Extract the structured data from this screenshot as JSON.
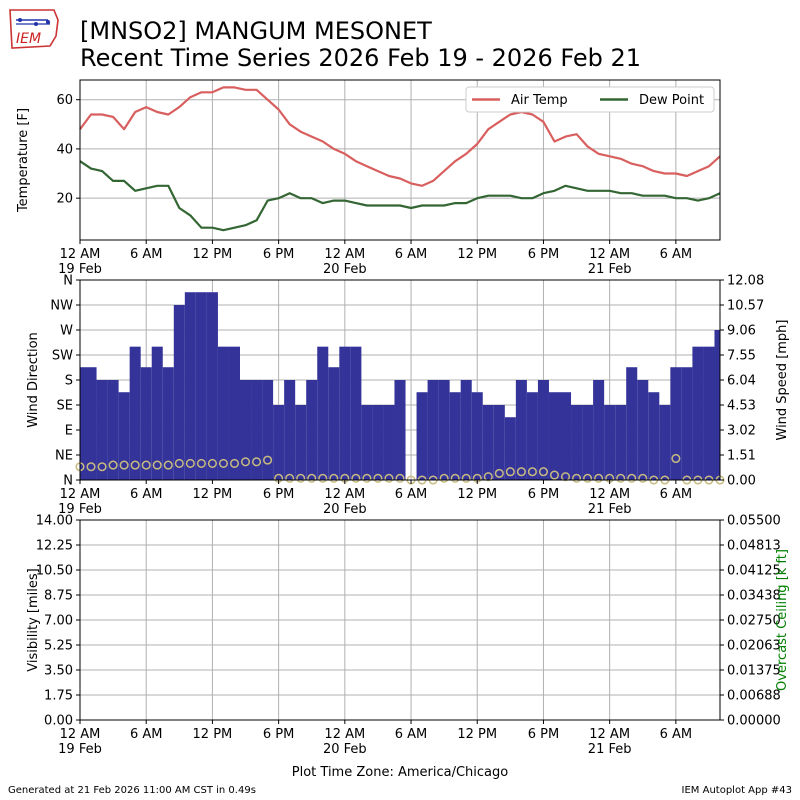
{
  "header": {
    "title_line1": "[MNSO2] MANGUM MESONET",
    "title_line2": "Recent Time Series 2026 Feb 19 - 2026 Feb 21",
    "logo_text": "IEM"
  },
  "footer": {
    "left": "Generated at 21 Feb 2026 11:00 AM CST in 0.49s",
    "right": "IEM Autoplot App #43"
  },
  "x_axis": {
    "tick_hours": [
      0,
      6,
      12,
      18,
      24,
      30,
      36,
      42,
      48,
      54
    ],
    "tick_labels": [
      "12 AM",
      "6 AM",
      "12 PM",
      "6 PM",
      "12 AM",
      "6 AM",
      "12 PM",
      "6 PM",
      "12 AM",
      "6 AM"
    ],
    "date_labels": [
      "19 Feb",
      "",
      "",
      "",
      "20 Feb",
      "",
      "",
      "",
      "21 Feb",
      ""
    ],
    "range_hours": [
      0,
      58
    ],
    "xlabel": "Plot Time Zone: America/Chicago"
  },
  "colors": {
    "air_temp": "#d95f5f",
    "dew_point": "#336633",
    "wind_dir_fill": "#333399",
    "wind_speed_marker": "#c8bb80",
    "ceiling_axis": "#008000",
    "grid": "#b0b0b0"
  },
  "chart_data": [
    {
      "type": "line",
      "ylabel": "Temperature [F]",
      "ylim": [
        3,
        68
      ],
      "yticks": [
        20,
        40,
        60
      ],
      "grid": true,
      "legend_position": "top-right",
      "series": [
        {
          "name": "Air Temp",
          "x": [
            0,
            1,
            2,
            3,
            4,
            5,
            6,
            7,
            8,
            9,
            10,
            11,
            12,
            13,
            14,
            15,
            16,
            17,
            18,
            19,
            20,
            21,
            22,
            23,
            24,
            25,
            26,
            27,
            28,
            29,
            30,
            31,
            32,
            33,
            34,
            35,
            36,
            37,
            38,
            39,
            40,
            41,
            42,
            43,
            44,
            45,
            46,
            47,
            48,
            49,
            50,
            51,
            52,
            53,
            54,
            55,
            56,
            57,
            58
          ],
          "y": [
            48,
            54,
            54,
            53,
            48,
            55,
            57,
            55,
            54,
            57,
            61,
            63,
            63,
            65,
            65,
            64,
            64,
            60,
            56,
            50,
            47,
            45,
            43,
            40,
            38,
            35,
            33,
            31,
            29,
            28,
            26,
            25,
            27,
            31,
            35,
            38,
            42,
            48,
            51,
            54,
            55,
            54,
            51,
            43,
            45,
            46,
            41,
            38,
            37,
            36,
            34,
            33,
            31,
            30,
            30,
            29,
            31,
            33,
            37
          ]
        },
        {
          "name": "Dew Point",
          "x": [
            0,
            1,
            2,
            3,
            4,
            5,
            6,
            7,
            8,
            9,
            10,
            11,
            12,
            13,
            14,
            15,
            16,
            17,
            18,
            19,
            20,
            21,
            22,
            23,
            24,
            25,
            26,
            27,
            28,
            29,
            30,
            31,
            32,
            33,
            34,
            35,
            36,
            37,
            38,
            39,
            40,
            41,
            42,
            43,
            44,
            45,
            46,
            47,
            48,
            49,
            50,
            51,
            52,
            53,
            54,
            55,
            56,
            57,
            58
          ],
          "y": [
            35,
            32,
            31,
            27,
            27,
            23,
            24,
            25,
            25,
            16,
            13,
            8,
            8,
            7,
            8,
            9,
            11,
            19,
            20,
            22,
            20,
            20,
            18,
            19,
            19,
            18,
            17,
            17,
            17,
            17,
            16,
            17,
            17,
            17,
            18,
            18,
            20,
            21,
            21,
            21,
            20,
            20,
            22,
            23,
            25,
            24,
            23,
            23,
            23,
            22,
            22,
            21,
            21,
            21,
            20,
            20,
            19,
            20,
            22
          ]
        }
      ]
    },
    {
      "type": "bar",
      "ylabel": "Wind Direction",
      "y2label": "Wind Speed [mph]",
      "ylim": [
        0,
        360
      ],
      "yticks": [
        0,
        45,
        90,
        135,
        180,
        225,
        270,
        315,
        360
      ],
      "ytick_labels": [
        "N",
        "NE",
        "E",
        "SE",
        "S",
        "SW",
        "W",
        "NW",
        "N"
      ],
      "y2lim": [
        0,
        12.08
      ],
      "y2ticks": [
        0.0,
        1.51,
        3.02,
        4.53,
        6.04,
        7.55,
        9.06,
        10.57,
        12.08
      ],
      "y2tick_labels": [
        "0.00",
        "1.51",
        "3.02",
        "4.53",
        "6.04",
        "7.55",
        "9.06",
        "10.57",
        "12.08"
      ],
      "grid": true,
      "series": [
        {
          "name": "",
          "kind": "bar",
          "bar_width_hours": 1,
          "x": [
            0,
            1,
            2,
            3,
            4,
            5,
            6,
            7,
            8,
            9,
            10,
            11,
            12,
            13,
            14,
            15,
            16,
            17,
            18,
            19,
            20,
            21,
            22,
            23,
            24,
            25,
            26,
            27,
            28,
            29,
            30,
            31,
            32,
            33,
            34,
            35,
            36,
            37,
            38,
            39,
            40,
            41,
            42,
            43,
            44,
            45,
            46,
            47,
            48,
            49,
            50,
            51,
            52,
            53,
            54,
            55,
            56,
            57,
            58
          ],
          "y": [
            203,
            203,
            180,
            180,
            158,
            240,
            203,
            240,
            203,
            315,
            338,
            338,
            338,
            240,
            240,
            180,
            180,
            180,
            135,
            180,
            135,
            180,
            240,
            203,
            240,
            240,
            135,
            135,
            135,
            180,
            0,
            158,
            180,
            180,
            158,
            180,
            158,
            135,
            135,
            113,
            180,
            158,
            180,
            158,
            158,
            135,
            135,
            180,
            135,
            135,
            203,
            180,
            158,
            135,
            203,
            203,
            240,
            240,
            270
          ]
        },
        {
          "name": "",
          "kind": "scatter",
          "x": [
            0,
            1,
            2,
            3,
            4,
            5,
            6,
            7,
            8,
            9,
            10,
            11,
            12,
            13,
            14,
            15,
            16,
            17,
            18,
            19,
            20,
            21,
            22,
            23,
            24,
            25,
            26,
            27,
            28,
            29,
            30,
            31,
            32,
            33,
            34,
            35,
            36,
            37,
            38,
            39,
            40,
            41,
            42,
            43,
            44,
            45,
            46,
            47,
            48,
            49,
            50,
            51,
            52,
            53,
            54,
            55,
            56,
            57,
            58
          ],
          "y": [
            0.8,
            0.8,
            0.8,
            0.9,
            0.9,
            0.9,
            0.9,
            0.9,
            0.9,
            1.0,
            1.0,
            1.0,
            1.0,
            1.0,
            1.0,
            1.1,
            1.1,
            1.2,
            0.1,
            0.1,
            0.1,
            0.1,
            0.1,
            0.1,
            0.1,
            0.1,
            0.1,
            0.1,
            0.1,
            0.1,
            0.0,
            0.0,
            0.0,
            0.1,
            0.1,
            0.1,
            0.1,
            0.2,
            0.4,
            0.5,
            0.5,
            0.5,
            0.5,
            0.3,
            0.2,
            0.1,
            0.1,
            0.1,
            0.1,
            0.1,
            0.1,
            0.1,
            0.0,
            0.0,
            1.3,
            0.0,
            0.0,
            0.0,
            0.0
          ]
        }
      ]
    },
    {
      "type": "line",
      "ylabel": "Visibility [miles]",
      "y2label": "Overcast Ceiling [k ft]",
      "ylim": [
        0,
        14
      ],
      "yticks": [
        0,
        1.75,
        3.5,
        5.25,
        7,
        8.75,
        10.5,
        12.25,
        14
      ],
      "ytick_labels": [
        "0.00",
        "1.75",
        "3.50",
        "5.25",
        "7.00",
        "8.75",
        "10.50",
        "12.25",
        "14.00"
      ],
      "y2lim": [
        0,
        0.055
      ],
      "y2tick_labels": [
        "0.00000",
        "0.00688",
        "0.01375",
        "0.02063",
        "0.02750",
        "0.03438",
        "0.04125",
        "0.04813",
        "0.05500"
      ],
      "grid": true,
      "series": []
    }
  ]
}
